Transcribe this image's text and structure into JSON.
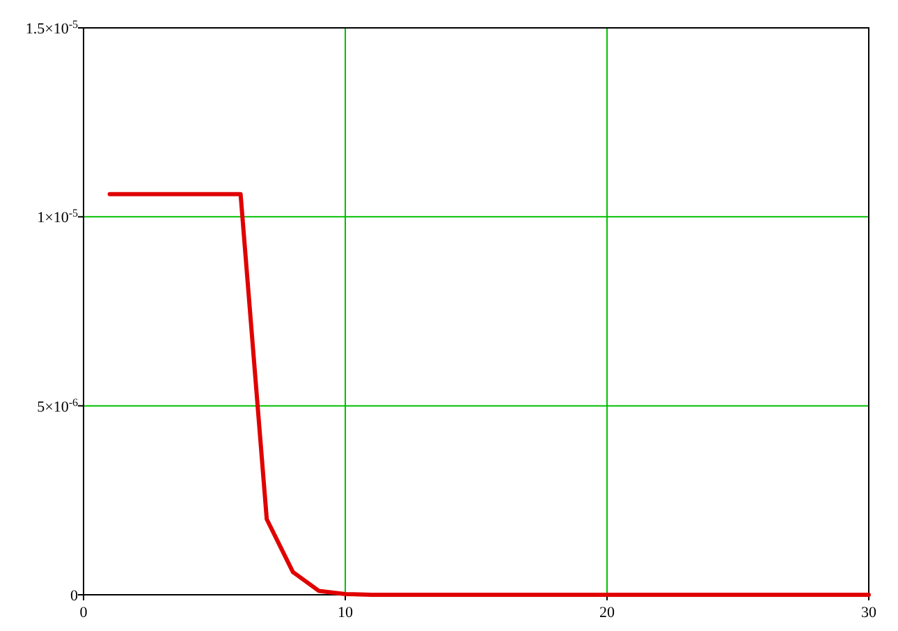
{
  "chart_data": {
    "type": "line",
    "x": [
      1,
      6,
      7,
      8,
      9,
      10,
      11,
      30
    ],
    "series": [
      {
        "color": "#e00000",
        "values": [
          1.06e-05,
          1.06e-05,
          2e-06,
          6e-07,
          1e-07,
          2e-08,
          0,
          0
        ]
      }
    ],
    "xlim": [
      0,
      30
    ],
    "xticks": [
      0,
      10,
      20,
      30
    ],
    "ylim": [
      0,
      1.5e-05
    ],
    "yticks": [
      {
        "value": 0,
        "label": "0"
      },
      {
        "value": 5e-06,
        "label": "5×10$^{-6}$"
      },
      {
        "value": 1e-05,
        "label": "1×10$^{-5}$"
      },
      {
        "value": 1.5e-05,
        "label": "1.5×10$^{-5}$"
      }
    ],
    "grid": true,
    "marker": "none",
    "line_style": "solid"
  }
}
